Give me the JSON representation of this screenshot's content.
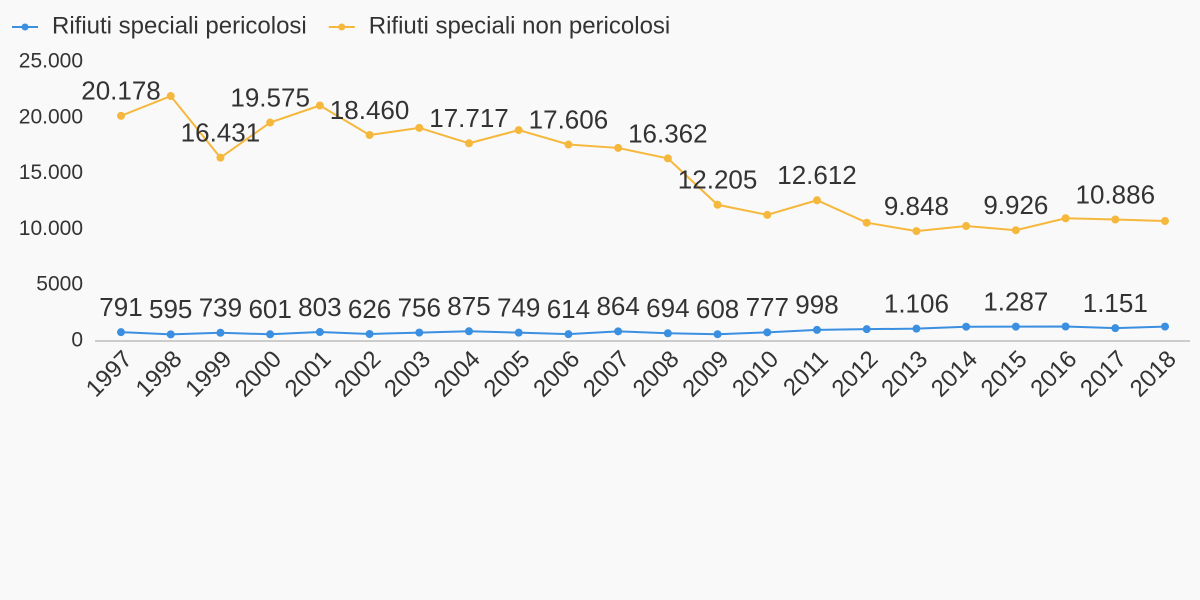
{
  "chart_data": {
    "type": "line",
    "x": [
      "1997",
      "1998",
      "1999",
      "2000",
      "2001",
      "2002",
      "2003",
      "2004",
      "2005",
      "2006",
      "2007",
      "2008",
      "2009",
      "2010",
      "2011",
      "2012",
      "2013",
      "2014",
      "2015",
      "2016",
      "2017",
      "2018"
    ],
    "series": [
      {
        "name": "Rifiuti speciali pericolosi",
        "color": "#3b8fe0",
        "values": [
          791,
          595,
          739,
          601,
          803,
          626,
          756,
          875,
          749,
          614,
          864,
          694,
          608,
          777,
          998,
          1060,
          1106,
          1280,
          1287,
          1300,
          1151,
          1290
        ],
        "value_labels": [
          "791",
          "595",
          "739",
          "601",
          "803",
          "626",
          "756",
          "875",
          "749",
          "614",
          "864",
          "694",
          "608",
          "777",
          "998",
          null,
          "1.106",
          null,
          "1.287",
          null,
          "1.151",
          null
        ]
      },
      {
        "name": "Rifiuti speciali non pericolosi",
        "color": "#f5b83d",
        "values": [
          20178,
          21950,
          16431,
          19575,
          21100,
          18460,
          19100,
          17717,
          18900,
          17606,
          17300,
          16362,
          12205,
          11300,
          12612,
          10600,
          9848,
          10300,
          9926,
          11000,
          10886,
          10750
        ],
        "value_labels": [
          "20.178",
          null,
          "16.431",
          "19.575",
          null,
          "18.460",
          null,
          "17.717",
          null,
          "17.606",
          null,
          "16.362",
          "12.205",
          null,
          "12.612",
          null,
          "9.848",
          null,
          "9.926",
          null,
          "10.886",
          null
        ]
      }
    ],
    "ylim": [
      0,
      25000
    ],
    "yticks": [
      0,
      5000,
      {
        "value": 10000,
        "label": "10.000"
      },
      {
        "value": 15000,
        "label": "15.000"
      },
      {
        "value": 20000,
        "label": "20.000"
      },
      {
        "value": 25000,
        "label": "25.000"
      }
    ],
    "grid": false,
    "legend": "top-left"
  }
}
